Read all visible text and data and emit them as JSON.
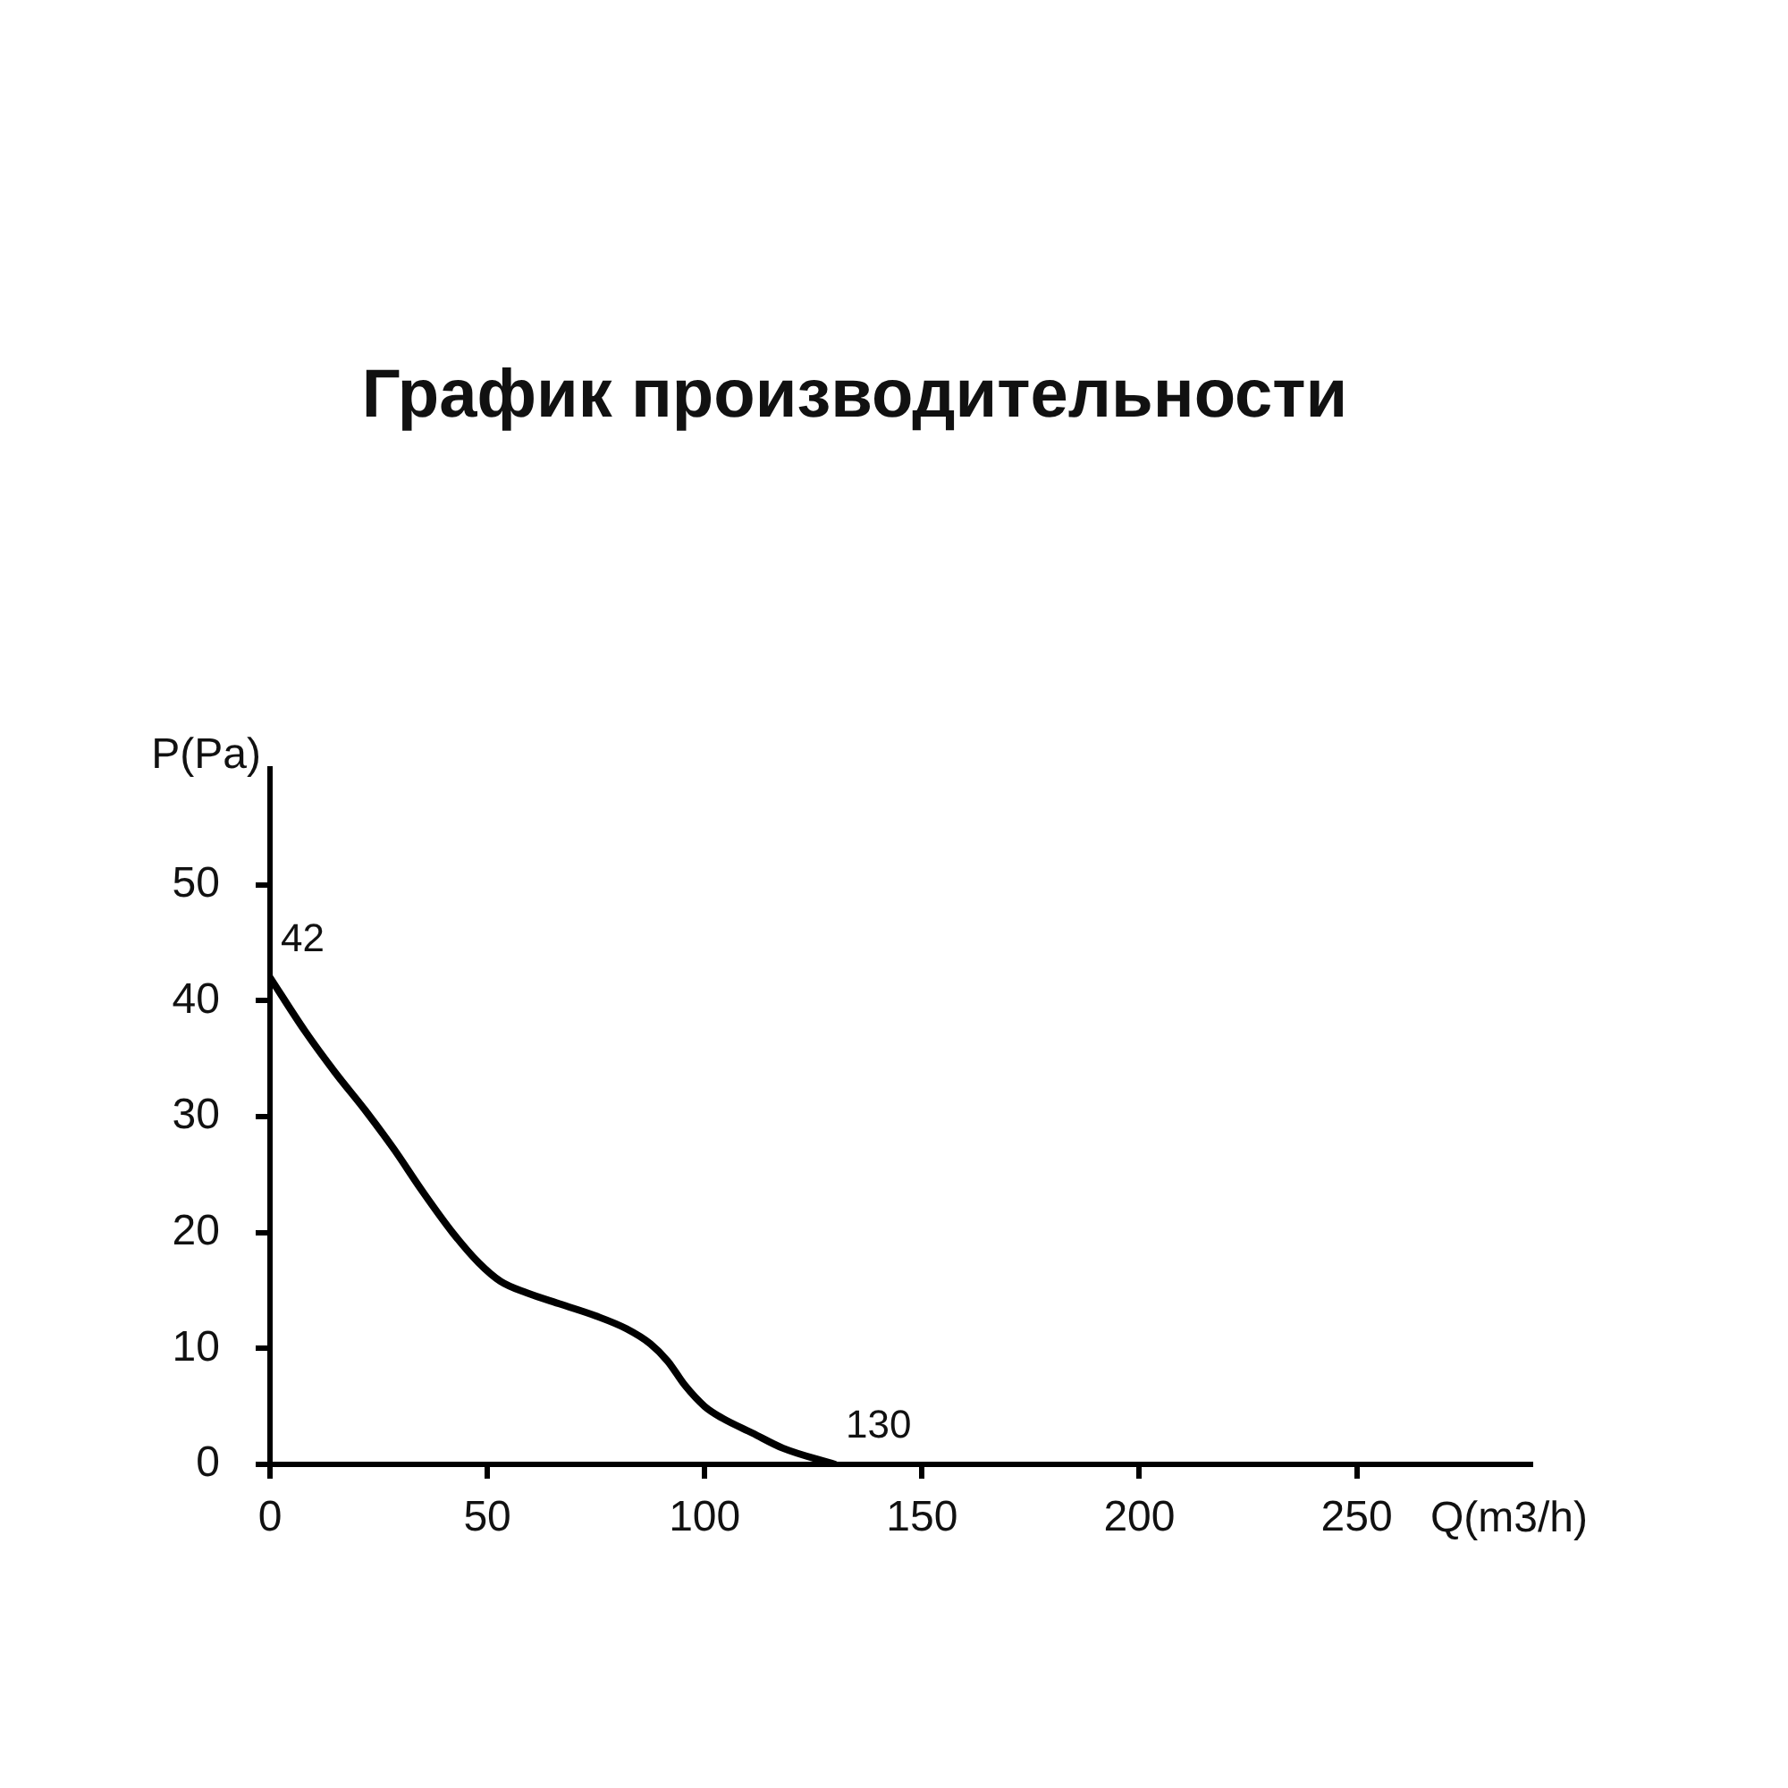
{
  "chart_data": {
    "type": "line",
    "title": "График производительности",
    "xlabel": "Q(m3/h)",
    "ylabel": "P(Pa)",
    "x": [
      0,
      8,
      15,
      22,
      28.5,
      35,
      42,
      48,
      53,
      59,
      67,
      75,
      82,
      87.5,
      91.5,
      95.5,
      100,
      104,
      111,
      118,
      130
    ],
    "series": [
      {
        "color": "#000000",
        "values": [
          42,
          37.4,
          33.8,
          30.5,
          27.2,
          23.6,
          20,
          17.4,
          15.8,
          14.8,
          13.8,
          12.8,
          11.7,
          10.4,
          8.9,
          6.8,
          5,
          4,
          2.7,
          1.4,
          0
        ]
      }
    ],
    "xlim": [
      0,
      290
    ],
    "ylim": [
      0,
      60
    ],
    "xticks": [
      0,
      50,
      100,
      150,
      200,
      250
    ],
    "yticks": [
      0,
      10,
      20,
      30,
      40,
      50
    ],
    "annotations": [
      {
        "text": "42",
        "x": 0,
        "y": 42
      },
      {
        "text": "130",
        "x": 130,
        "y": 0
      }
    ],
    "grid": false,
    "legend": false,
    "marker": "none",
    "line_style": "solid"
  }
}
